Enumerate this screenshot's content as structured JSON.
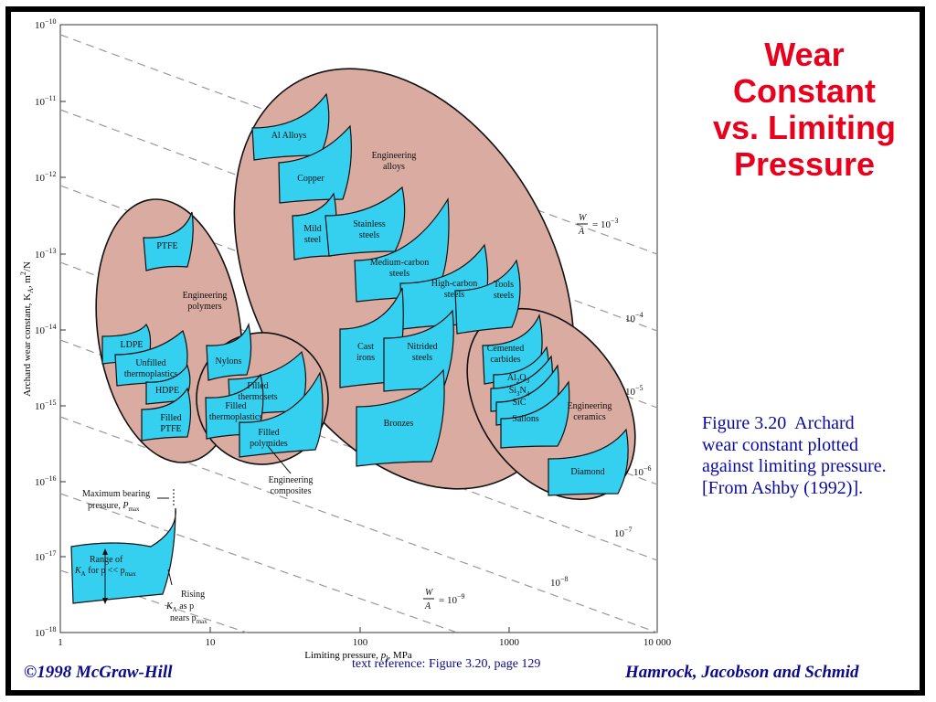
{
  "slide": {
    "title": "Wear\nConstant\nvs. Limiting\nPressure",
    "caption_figure": "Figure 3.20",
    "caption_body": "Archard wear constant plotted against limiting pressure. [From Ashby (1992)].",
    "footer_left": "©1998 McGraw-Hill",
    "footer_right": "Hamrock, Jacobson and Schmid",
    "text_reference": "text reference:  Figure 3.20,  page 129",
    "title_color": "#e8001c",
    "text_color": "#0a0aa0"
  },
  "chart": {
    "xlabel_main": "Limiting pressure, ",
    "xlabel_var": "p",
    "xlabel_sub": "l",
    "xlabel_unit": ", MPa",
    "ylabel": "Archard wear constant, K",
    "ylabel_sub": "A",
    "ylabel_unit": ", m",
    "ylabel_sup": "2",
    "ylabel_tail": "/N",
    "x_ticks": [
      {
        "label": "1",
        "value": 1
      },
      {
        "label": "10",
        "value": 10
      },
      {
        "label": "100",
        "value": 100
      },
      {
        "label": "1000",
        "value": 1000
      },
      {
        "label": "10 000",
        "value": 10000
      }
    ],
    "y_ticks": [
      {
        "base": "10",
        "exp": "−10",
        "value": -10
      },
      {
        "base": "10",
        "exp": "−11",
        "value": -11
      },
      {
        "base": "10",
        "exp": "−12",
        "value": -12
      },
      {
        "base": "10",
        "exp": "−13",
        "value": -13
      },
      {
        "base": "10",
        "exp": "−14",
        "value": -14
      },
      {
        "base": "10",
        "exp": "−15",
        "value": -15
      },
      {
        "base": "10",
        "exp": "−16",
        "value": -16
      },
      {
        "base": "10",
        "exp": "−17",
        "value": -17
      },
      {
        "base": "10",
        "exp": "−18",
        "value": -18
      }
    ],
    "guideline_labels": [
      {
        "text": "= 10",
        "exp": "−3",
        "fraction": true
      },
      {
        "text": "10",
        "exp": "−4"
      },
      {
        "text": "10",
        "exp": "−5"
      },
      {
        "text": "10",
        "exp": "−6"
      },
      {
        "text": "10",
        "exp": "−7"
      },
      {
        "text": "10",
        "exp": "−8"
      },
      {
        "text": "= 10",
        "exp": "−9",
        "fraction": true
      }
    ],
    "fraction_top": "W",
    "fraction_bottom": "A",
    "groups": {
      "polymers": "Engineering\npolymers",
      "alloys": "Engineering\nalloys",
      "composites": "Engineering\ncomposites",
      "ceramics": "Engineering\nceramics"
    },
    "materials": [
      "PTFE",
      "LDPE",
      "Unfilled\nthermoplastics",
      "HDPE",
      "Filled\nPTFE",
      "Nylons",
      "Filled\nthermosets",
      "Filled\nthermoplastics",
      "Filled\npolymides",
      "Al Alloys",
      "Copper",
      "Mild\nsteel",
      "Stainless\nsteels",
      "Medium-carbon\nsteels",
      "High-carbon\nsteels",
      "Tools\nsteels",
      "Cast\nirons",
      "Nitrided\nsteels",
      "Bronzes",
      "Cemented\ncarbides",
      "Al2O3",
      "Si3N4",
      "SiC",
      "Sailons",
      "Diamond"
    ],
    "key": {
      "max_bearing": "Maximum bearing\npressure, P",
      "max_sub": "max",
      "range_of": "Range of",
      "range_k": "K",
      "range_k_sub": "A",
      "range_tail": " for p << p",
      "range_tail_sub": "max",
      "rising": "Rising\nK",
      "rising_sub": "A",
      "rising_tail": " as p\nnears p",
      "rising_tail_sub": "max"
    },
    "colors": {
      "blob": "#d9aba1",
      "material": "#35cfef",
      "stroke": "#111111",
      "guide": "#999999"
    }
  }
}
